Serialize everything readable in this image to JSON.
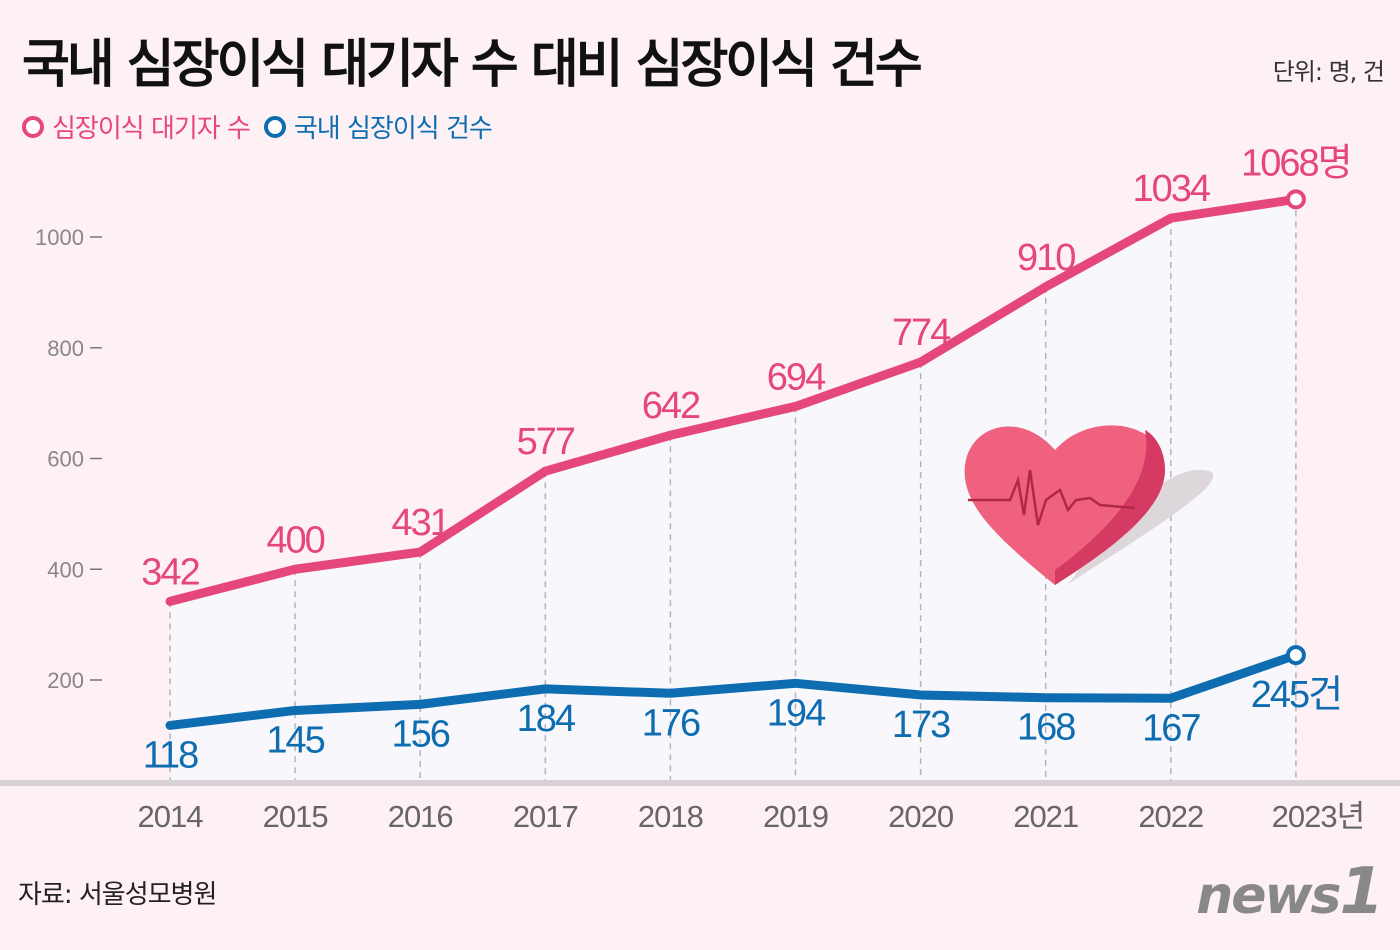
{
  "title": "국내 심장이식 대기자 수 대비 심장이식 건수",
  "unit": "단위: 명, 건",
  "source": "자료: 서울성모병원",
  "logo": "news1",
  "colors": {
    "waiting": "#e6477a",
    "transplants": "#0d6db0",
    "background": "#fdf1f5"
  },
  "chart_data": {
    "type": "line",
    "title": "국내 심장이식 대기자 수 대비 심장이식 건수",
    "x": [
      "2014",
      "2015",
      "2016",
      "2017",
      "2018",
      "2019",
      "2020",
      "2021",
      "2022",
      "2023"
    ],
    "x_tick_labels": [
      "2014",
      "2015",
      "2016",
      "2017",
      "2018",
      "2019",
      "2020",
      "2021",
      "2022",
      "2023년"
    ],
    "y_ticks": [
      200,
      400,
      600,
      800,
      1000
    ],
    "y_tick_labels": [
      "200",
      "400",
      "600",
      "800",
      "1000"
    ],
    "ylim": [
      0,
      1100
    ],
    "grid": "vertical dashed",
    "legend_position": "top-left",
    "series": [
      {
        "name": "심장이식 대기자 수",
        "values": [
          342,
          400,
          431,
          577,
          642,
          694,
          774,
          910,
          1034,
          1068
        ],
        "labels": [
          "342",
          "400",
          "431",
          "577",
          "642",
          "694",
          "774",
          "910",
          "1034",
          "1068명"
        ]
      },
      {
        "name": "국내 심장이식 건수",
        "values": [
          118,
          145,
          156,
          184,
          176,
          194,
          173,
          168,
          167,
          245
        ],
        "labels": [
          "118",
          "145",
          "156",
          "184",
          "176",
          "194",
          "173",
          "168",
          "167",
          "245건"
        ]
      }
    ]
  }
}
